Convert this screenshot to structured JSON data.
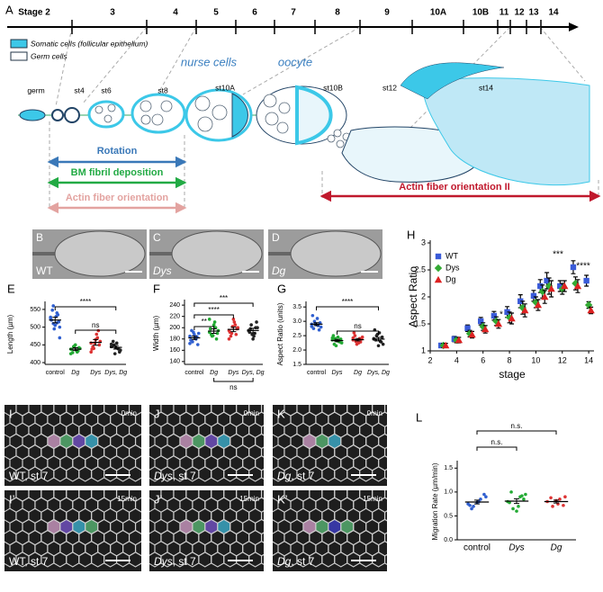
{
  "panel_a": {
    "letter": "A",
    "stages": [
      "Stage 2",
      "3",
      "4",
      "5",
      "6",
      "7",
      "8",
      "9",
      "10A",
      "10B",
      "11",
      "12",
      "13",
      "14"
    ],
    "legend": [
      "Somatic cells (follicular epithelium)",
      "Germ cells"
    ],
    "chamber_labels": [
      "germ",
      "st4",
      "st6",
      "st8",
      "st10A",
      "st10B",
      "st12",
      "st14"
    ],
    "cell_labels": [
      "nurse cells",
      "oocyte"
    ],
    "processes": [
      "Rotation",
      "BM fibril deposition",
      "Actin fiber orientation",
      "Actin fiber orientation II"
    ]
  },
  "images": [
    {
      "letter": "B",
      "label": "WT"
    },
    {
      "letter": "C",
      "label": "Dys"
    },
    {
      "letter": "D",
      "label": "Dg"
    }
  ],
  "timelapse": [
    {
      "letter": "I",
      "genotype": "WT",
      "stage": ", st 7",
      "time": "0min"
    },
    {
      "letter": "J",
      "genotype": "Dys",
      "stage": ", st 7",
      "time": "0min"
    },
    {
      "letter": "K",
      "genotype": "Dg",
      "stage": ", st 7",
      "time": "0min"
    },
    {
      "letter": "I’",
      "genotype": "WT",
      "stage": ", st 7",
      "time": "15min"
    },
    {
      "letter": "J’",
      "genotype": "Dys",
      "stage": ", st 7",
      "time": "15min"
    },
    {
      "letter": "K’",
      "genotype": "Dg",
      "stage": ", st 7",
      "time": "15min"
    }
  ],
  "chart_data": [
    {
      "type": "dot",
      "panel": "E",
      "y_label": "Length (µm)",
      "categories": [
        "control",
        "Dg",
        "Dys",
        "Dys, Dg"
      ],
      "ylim": [
        395,
        565
      ],
      "yticks": [
        400,
        450,
        500,
        550
      ],
      "significance": [
        "****",
        "ns"
      ],
      "groups": [
        {
          "color": "#2f5fd0",
          "values": [
            525,
            540,
            510,
            500,
            530,
            548,
            515,
            505,
            520,
            535,
            495,
            528,
            512,
            560,
            470
          ],
          "mean": 520,
          "error": 8
        },
        {
          "color": "#22aa33",
          "values": [
            438,
            430,
            445,
            440,
            435,
            428,
            442,
            450,
            437,
            433,
            447,
            425
          ],
          "mean": 438,
          "error": 4
        },
        {
          "color": "#dd3333",
          "values": [
            455,
            470,
            440,
            460,
            480,
            445,
            450,
            465,
            438,
            490,
            455,
            430
          ],
          "mean": 457,
          "error": 8
        },
        {
          "color": "#222222",
          "values": [
            445,
            440,
            450,
            435,
            455,
            460,
            430,
            442,
            448,
            438,
            425,
            452
          ],
          "mean": 443,
          "error": 5
        }
      ]
    },
    {
      "type": "dot",
      "panel": "F",
      "y_label": "Width (µm)",
      "categories": [
        "control",
        "Dg",
        "Dys",
        "Dys, Dg"
      ],
      "ylim": [
        135,
        245
      ],
      "yticks": [
        140,
        160,
        180,
        200,
        220,
        240
      ],
      "significance": [
        "**",
        "****",
        "***",
        "ns"
      ],
      "groups": [
        {
          "color": "#2f5fd0",
          "values": [
            185,
            180,
            175,
            190,
            182,
            195,
            170,
            188,
            178,
            184,
            192,
            172
          ],
          "mean": 182,
          "error": 3
        },
        {
          "color": "#22aa33",
          "values": [
            192,
            200,
            185,
            195,
            210,
            188,
            190,
            205,
            198,
            180,
            186,
            215
          ],
          "mean": 194,
          "error": 4
        },
        {
          "color": "#dd3333",
          "values": [
            195,
            205,
            190,
            200,
            210,
            185,
            198,
            215,
            192,
            188,
            202,
            180
          ],
          "mean": 197,
          "error": 4
        },
        {
          "color": "#222222",
          "values": [
            195,
            190,
            205,
            200,
            185,
            198,
            210,
            180,
            192,
            200,
            188,
            195
          ],
          "mean": 195,
          "error": 4
        }
      ]
    },
    {
      "type": "dot",
      "panel": "G",
      "y_label": "Aspect Ratio (units)",
      "categories": [
        "control",
        "Dys",
        "Dg",
        "Dys, Dg"
      ],
      "ylim": [
        1.5,
        3.6
      ],
      "yticks": [
        {
          "value": 1.5,
          "label": "1.5"
        },
        {
          "value": 2,
          "label": "2.0"
        },
        {
          "value": 2.5,
          "label": "2.5"
        },
        {
          "value": 3,
          "label": "3.0"
        },
        {
          "value": 3.5,
          "label": "3.5"
        }
      ],
      "significance": [
        "****",
        "ns"
      ],
      "groups": [
        {
          "color": "#2f5fd0",
          "values": [
            2.9,
            2.85,
            3.0,
            2.8,
            3.1,
            2.75,
            2.95,
            2.88,
            3.2,
            2.7,
            2.92,
            2.82
          ],
          "mean": 2.9,
          "error": 0.05
        },
        {
          "color": "#22aa33",
          "values": [
            2.35,
            2.3,
            2.4,
            2.25,
            2.45,
            2.2,
            2.38,
            2.32,
            2.5,
            2.28,
            2.15,
            2.42
          ],
          "mean": 2.33,
          "error": 0.04
        },
        {
          "color": "#dd3333",
          "values": [
            2.35,
            2.4,
            2.3,
            2.45,
            2.25,
            2.5,
            2.38,
            2.32,
            2.6,
            2.28,
            2.2,
            2.42
          ],
          "mean": 2.36,
          "error": 0.04
        },
        {
          "color": "#222222",
          "values": [
            2.4,
            2.3,
            2.5,
            2.2,
            2.6,
            2.35,
            2.45,
            2.15,
            2.7,
            2.28,
            2.55,
            2.38
          ],
          "mean": 2.38,
          "error": 0.06
        }
      ]
    },
    {
      "type": "scatter",
      "panel": "H",
      "x_label": "stage",
      "y_label": "Aspect Ratio",
      "xlim": [
        2,
        14.4
      ],
      "xticks": [
        2,
        4,
        6,
        8,
        10,
        12,
        14
      ],
      "ylim": [
        1,
        3
      ],
      "yticks": [
        1,
        1.5,
        2,
        2.5,
        3
      ],
      "annotations": [
        "*",
        "***",
        "****"
      ],
      "series": [
        {
          "name": "WT",
          "color": "#3a5bd8",
          "x": [
            3,
            4,
            5,
            6,
            7,
            8,
            9,
            10,
            10.5,
            11,
            12,
            13,
            14
          ],
          "values": [
            1.1,
            1.22,
            1.42,
            1.55,
            1.65,
            1.72,
            1.92,
            2.02,
            2.2,
            2.3,
            2.2,
            2.55,
            2.3
          ],
          "errors": [
            0.04,
            0.05,
            0.06,
            0.07,
            0.08,
            0.1,
            0.12,
            0.1,
            0.12,
            0.15,
            0.1,
            0.12,
            0.1
          ]
        },
        {
          "name": "Dys",
          "color": "#33aa33",
          "x": [
            3,
            4,
            5,
            6,
            7,
            8,
            9,
            10,
            10.5,
            11,
            12,
            13,
            14
          ],
          "values": [
            1.1,
            1.2,
            1.32,
            1.45,
            1.55,
            1.62,
            1.8,
            1.9,
            2.1,
            2.2,
            2.15,
            2.25,
            1.85
          ],
          "errors": [
            0.04,
            0.05,
            0.06,
            0.07,
            0.08,
            0.1,
            0.12,
            0.1,
            0.12,
            0.15,
            0.1,
            0.12,
            0.06
          ]
        },
        {
          "name": "Dg",
          "color": "#dd2222",
          "x": [
            3,
            4,
            5,
            6,
            7,
            8,
            9,
            10,
            10.5,
            11,
            12,
            13,
            14
          ],
          "values": [
            1.1,
            1.2,
            1.3,
            1.4,
            1.5,
            1.6,
            1.75,
            1.85,
            2.0,
            2.15,
            2.2,
            2.2,
            1.75
          ],
          "errors": [
            0.04,
            0.05,
            0.06,
            0.07,
            0.08,
            0.1,
            0.12,
            0.1,
            0.12,
            0.15,
            0.1,
            0.12,
            0.06
          ]
        }
      ]
    },
    {
      "type": "dot",
      "panel": "L",
      "y_label": "Migration Rate (µm/min)",
      "categories": [
        "control",
        "Dys",
        "Dg"
      ],
      "ylim": [
        0,
        1.6
      ],
      "yticks": [
        {
          "value": 0,
          "label": "0.0"
        },
        {
          "value": 0.5,
          "label": "0.5"
        },
        {
          "value": 1,
          "label": "1.0"
        },
        {
          "value": 1.5,
          "label": "1.5"
        }
      ],
      "significance": [
        "n.s.",
        "n.s."
      ],
      "groups": [
        {
          "color": "#2f5fd0",
          "values": [
            0.75,
            0.85,
            0.7,
            0.9,
            0.8,
            0.65,
            0.95,
            0.78,
            0.72
          ],
          "mean": 0.79,
          "error": 0.04
        },
        {
          "color": "#22aa33",
          "values": [
            0.8,
            0.9,
            0.65,
            0.95,
            0.7,
            1.0,
            0.85,
            0.6,
            0.78,
            0.92
          ],
          "mean": 0.81,
          "error": 0.05
        },
        {
          "color": "#dd3333",
          "values": [
            0.8,
            0.85,
            0.7,
            0.9,
            0.75,
            0.88,
            0.72,
            0.82
          ],
          "mean": 0.8,
          "error": 0.03
        }
      ]
    }
  ]
}
